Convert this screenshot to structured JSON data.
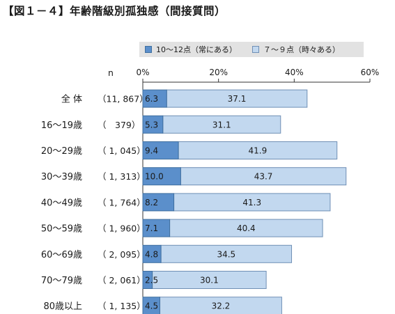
{
  "figure_title": "【図１－４】年齢階級別孤独感（間接質問）",
  "n_header": "n",
  "colors": {
    "series1_fill": "#5b8fcb",
    "series1_stroke": "#3f6f9f",
    "series2_fill": "#c2d8ef",
    "series2_stroke": "#6f8fb5",
    "text": "#1a1a1a"
  },
  "chart_data": {
    "type": "bar",
    "orientation": "horizontal",
    "stacked": true,
    "categories": [
      "全 体",
      "16～19歳",
      "20～29歳",
      "30～39歳",
      "40～49歳",
      "50～59歳",
      "60～69歳",
      "70～79歳",
      "80歳以上"
    ],
    "n_values": [
      "（11, 867）",
      "（　379）",
      "（ 1, 045）",
      "（ 1, 313）",
      "（ 1, 764）",
      "（ 1, 960）",
      "（ 2, 095）",
      "（ 2, 061）",
      "（ 1, 135）"
    ],
    "series": [
      {
        "name": "10～12点（常にある）",
        "values": [
          6.3,
          5.3,
          9.4,
          10.0,
          8.2,
          7.1,
          4.8,
          2.5,
          4.5
        ],
        "labels": [
          "6.3",
          "5.3",
          "9.4",
          "10.0",
          "8.2",
          "7.1",
          "4.8",
          "2.5",
          "4.5"
        ]
      },
      {
        "name": "７～９点（時々ある）",
        "values": [
          37.1,
          31.1,
          41.9,
          43.7,
          41.3,
          40.4,
          34.5,
          30.1,
          32.2
        ],
        "labels": [
          "37.1",
          "31.1",
          "41.9",
          "43.7",
          "41.3",
          "40.4",
          "34.5",
          "30.1",
          "32.2"
        ]
      }
    ],
    "xlim": [
      0,
      60
    ],
    "x_ticks": [
      0,
      20,
      40,
      60
    ],
    "x_tick_labels": [
      "0%",
      "20%",
      "40%",
      "60%"
    ],
    "grid": false,
    "legend_position": "top"
  }
}
